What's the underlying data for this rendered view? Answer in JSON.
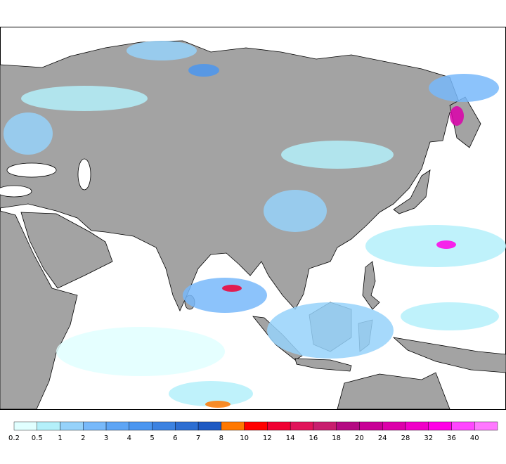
{
  "colorbar": {
    "labels": [
      "0.2",
      "0.5",
      "1",
      "2",
      "3",
      "4",
      "5",
      "6",
      "7",
      "8",
      "10",
      "12",
      "14",
      "16",
      "18",
      "20",
      "24",
      "28",
      "32",
      "36",
      "40"
    ],
    "colors": [
      "#e1ffff",
      "#b4f0fa",
      "#96d2fa",
      "#78b9fa",
      "#5ea5f5",
      "#4b96f0",
      "#3c82e1",
      "#2d6ed2",
      "#1e5ac3",
      "#ff7800",
      "#ff0000",
      "#f00032",
      "#e1145a",
      "#c81e6e",
      "#b40a82",
      "#c80096",
      "#dc00aa",
      "#f000c8",
      "#ff00e6",
      "#ff46ff",
      "#ff78ff"
    ]
  }
}
